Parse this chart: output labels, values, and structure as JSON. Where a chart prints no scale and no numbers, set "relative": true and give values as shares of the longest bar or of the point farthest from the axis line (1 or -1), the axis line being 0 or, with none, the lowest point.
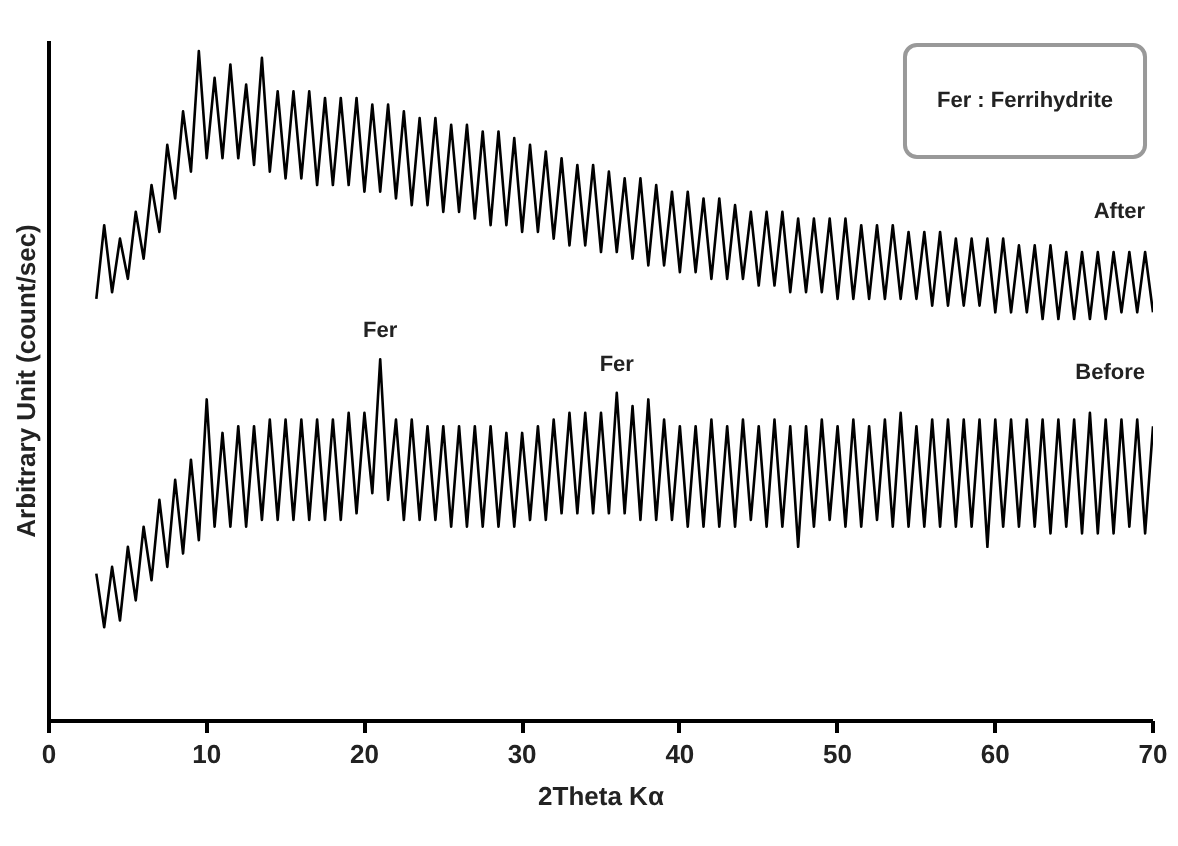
{
  "chart_data": {
    "type": "line",
    "relative": true,
    "xlabel": "2Theta Kα",
    "ylabel": "Arbitrary Unit (count/sec)",
    "xlim": [
      0,
      70
    ],
    "xticks": [
      0,
      10,
      20,
      30,
      40,
      50,
      60,
      70
    ],
    "tick_labels": "x",
    "x": [
      3,
      3.5,
      4,
      4.5,
      5,
      5.5,
      6,
      6.5,
      7,
      7.5,
      8,
      8.5,
      9,
      9.5,
      10,
      10.5,
      11,
      11.5,
      12,
      12.5,
      13,
      13.5,
      14,
      14.5,
      15,
      15.5,
      16,
      16.5,
      17,
      17.5,
      18,
      18.5,
      19,
      19.5,
      20,
      20.5,
      21,
      21.5,
      22,
      22.5,
      23,
      23.5,
      24,
      24.5,
      25,
      25.5,
      26,
      26.5,
      27,
      27.5,
      28,
      28.5,
      29,
      29.5,
      30,
      30.5,
      31,
      31.5,
      32,
      32.5,
      33,
      33.5,
      34,
      34.5,
      35,
      35.5,
      36,
      36.5,
      37,
      37.5,
      38,
      38.5,
      39,
      39.5,
      40,
      40.5,
      41,
      41.5,
      42,
      42.5,
      43,
      43.5,
      44,
      44.5,
      45,
      45.5,
      46,
      46.5,
      47,
      47.5,
      48,
      48.5,
      49,
      49.5,
      50,
      50.5,
      51,
      51.5,
      52,
      52.5,
      53,
      53.5,
      54,
      54.5,
      55,
      55.5,
      56,
      56.5,
      57,
      57.5,
      58,
      58.5,
      59,
      59.5,
      60,
      60.5,
      61,
      61.5,
      62,
      62.5,
      63,
      63.5,
      64,
      64.5,
      65,
      65.5,
      66,
      66.5,
      67,
      67.5,
      68,
      68.5,
      69,
      69.5,
      70
    ],
    "series": [
      {
        "name": "After",
        "color": "#000000",
        "values": [
          0.63,
          0.74,
          0.64,
          0.72,
          0.66,
          0.76,
          0.69,
          0.8,
          0.73,
          0.86,
          0.78,
          0.91,
          0.82,
          1.0,
          0.84,
          0.96,
          0.84,
          0.98,
          0.84,
          0.95,
          0.83,
          0.99,
          0.82,
          0.94,
          0.81,
          0.94,
          0.81,
          0.94,
          0.8,
          0.93,
          0.8,
          0.93,
          0.8,
          0.93,
          0.79,
          0.92,
          0.79,
          0.92,
          0.78,
          0.91,
          0.77,
          0.9,
          0.77,
          0.9,
          0.76,
          0.89,
          0.76,
          0.89,
          0.75,
          0.88,
          0.74,
          0.88,
          0.74,
          0.87,
          0.73,
          0.86,
          0.73,
          0.85,
          0.72,
          0.84,
          0.71,
          0.83,
          0.71,
          0.83,
          0.7,
          0.82,
          0.7,
          0.81,
          0.69,
          0.81,
          0.68,
          0.8,
          0.68,
          0.79,
          0.67,
          0.79,
          0.67,
          0.78,
          0.66,
          0.78,
          0.66,
          0.77,
          0.66,
          0.76,
          0.65,
          0.76,
          0.65,
          0.76,
          0.64,
          0.75,
          0.64,
          0.75,
          0.64,
          0.75,
          0.63,
          0.75,
          0.63,
          0.74,
          0.63,
          0.74,
          0.63,
          0.74,
          0.63,
          0.73,
          0.63,
          0.73,
          0.62,
          0.73,
          0.62,
          0.72,
          0.62,
          0.72,
          0.62,
          0.72,
          0.61,
          0.72,
          0.61,
          0.71,
          0.61,
          0.71,
          0.6,
          0.71,
          0.6,
          0.7,
          0.6,
          0.7,
          0.6,
          0.7,
          0.6,
          0.7,
          0.61,
          0.7,
          0.61,
          0.7,
          0.61
        ]
      },
      {
        "name": "Before",
        "color": "#000000",
        "values": [
          0.22,
          0.14,
          0.23,
          0.15,
          0.26,
          0.18,
          0.29,
          0.21,
          0.33,
          0.23,
          0.36,
          0.25,
          0.39,
          0.27,
          0.48,
          0.29,
          0.43,
          0.29,
          0.44,
          0.29,
          0.44,
          0.3,
          0.45,
          0.3,
          0.45,
          0.3,
          0.45,
          0.3,
          0.45,
          0.3,
          0.45,
          0.3,
          0.46,
          0.31,
          0.46,
          0.34,
          0.54,
          0.33,
          0.45,
          0.3,
          0.45,
          0.3,
          0.44,
          0.3,
          0.44,
          0.29,
          0.44,
          0.29,
          0.44,
          0.29,
          0.44,
          0.29,
          0.43,
          0.29,
          0.43,
          0.3,
          0.44,
          0.3,
          0.45,
          0.31,
          0.46,
          0.31,
          0.46,
          0.31,
          0.46,
          0.31,
          0.49,
          0.31,
          0.47,
          0.3,
          0.48,
          0.3,
          0.45,
          0.3,
          0.44,
          0.29,
          0.44,
          0.29,
          0.45,
          0.29,
          0.44,
          0.29,
          0.45,
          0.3,
          0.44,
          0.29,
          0.45,
          0.29,
          0.44,
          0.26,
          0.44,
          0.29,
          0.45,
          0.3,
          0.44,
          0.29,
          0.45,
          0.29,
          0.44,
          0.3,
          0.45,
          0.29,
          0.46,
          0.29,
          0.44,
          0.29,
          0.45,
          0.29,
          0.45,
          0.29,
          0.45,
          0.29,
          0.45,
          0.26,
          0.45,
          0.29,
          0.45,
          0.29,
          0.45,
          0.29,
          0.45,
          0.28,
          0.45,
          0.29,
          0.45,
          0.28,
          0.46,
          0.28,
          0.45,
          0.28,
          0.45,
          0.29,
          0.45,
          0.28,
          0.44
        ]
      }
    ],
    "annotations": [
      {
        "text": "Fer",
        "x": 21,
        "y": 0.54
      },
      {
        "text": "Fer",
        "x": 36,
        "y": 0.49
      },
      "Fer : Ferrihydrite"
    ]
  }
}
